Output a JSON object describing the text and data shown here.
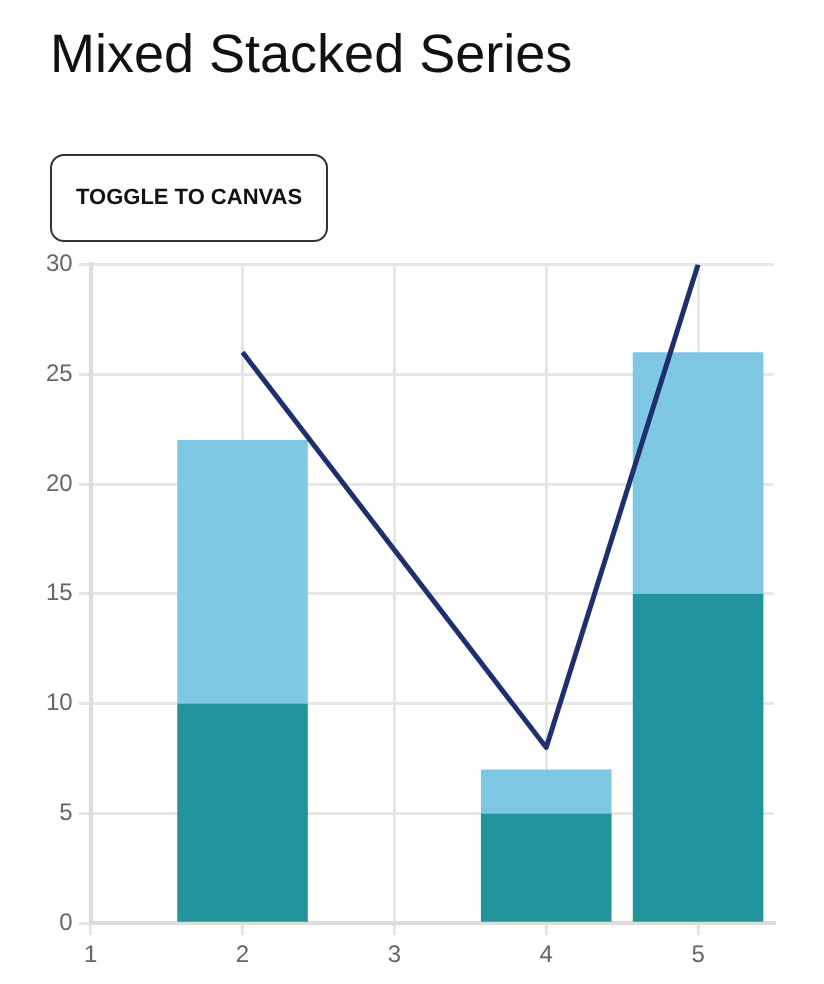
{
  "chart_data": {
    "type": "bar",
    "title": "Mixed Stacked Series",
    "annotations": [
      "TOGGLE TO CANVAS"
    ],
    "x": [
      2,
      4,
      5
    ],
    "stacked": true,
    "series": [
      {
        "color": "#21959b",
        "values": [
          10,
          5,
          15
        ]
      },
      {
        "color": "#7ec8e3",
        "values": [
          12,
          2,
          11
        ]
      },
      {
        "type": "line",
        "color": "#1f2f6e",
        "values": [
          26,
          8,
          30
        ],
        "marker": "none",
        "line_style": "solid"
      }
    ],
    "xlim": [
      1,
      5.5
    ],
    "xticks": [
      1,
      2,
      3,
      4,
      5
    ],
    "ylim": [
      0,
      30
    ],
    "yticks": [
      0,
      5,
      10,
      15,
      20,
      25,
      30
    ],
    "grid": true,
    "legend": false
  }
}
